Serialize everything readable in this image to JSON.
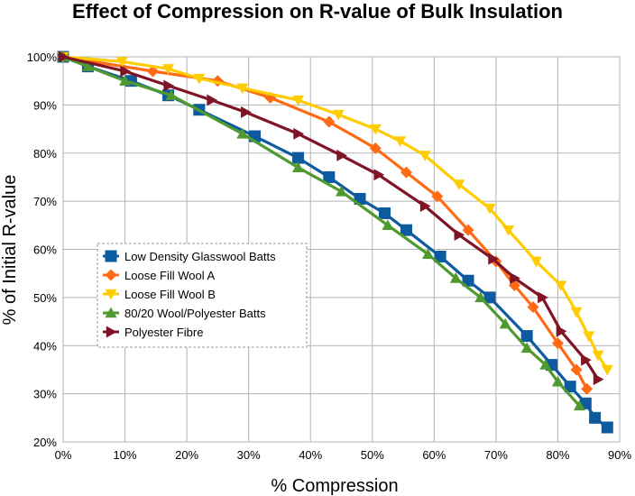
{
  "chart_data": {
    "type": "line",
    "title": "Effect of Compression on R-value of Bulk Insulation",
    "xlabel": "% Compression",
    "ylabel": "% of Initial R-value",
    "xlim": [
      0,
      90
    ],
    "ylim": [
      20,
      100
    ],
    "x_ticks": [
      "0%",
      "10%",
      "20%",
      "30%",
      "40%",
      "50%",
      "60%",
      "70%",
      "80%",
      "90%"
    ],
    "y_ticks": [
      "20%",
      "30%",
      "40%",
      "50%",
      "60%",
      "70%",
      "80%",
      "90%",
      "100%"
    ],
    "grid": true,
    "legend_position": "left-middle",
    "series": [
      {
        "name": "Low Density Glasswool Batts",
        "color": "#0E5A9E",
        "marker": "square",
        "points": [
          [
            0,
            100
          ],
          [
            4,
            98
          ],
          [
            11,
            95
          ],
          [
            17,
            92
          ],
          [
            22,
            89
          ],
          [
            31,
            83.5
          ],
          [
            38,
            79
          ],
          [
            43,
            75
          ],
          [
            48,
            70.5
          ],
          [
            52,
            67.5
          ],
          [
            55.5,
            64
          ],
          [
            61,
            58.5
          ],
          [
            65.5,
            53.5
          ],
          [
            69,
            50
          ],
          [
            75,
            42
          ],
          [
            79,
            36
          ],
          [
            82,
            31.5
          ],
          [
            84.5,
            28
          ],
          [
            86,
            25
          ],
          [
            88,
            23
          ]
        ]
      },
      {
        "name": "Loose Fill Wool A",
        "color": "#FF6A13",
        "marker": "diamond",
        "points": [
          [
            0,
            100
          ],
          [
            14.5,
            97
          ],
          [
            25,
            95
          ],
          [
            33.5,
            91.5
          ],
          [
            43,
            86.5
          ],
          [
            50.5,
            81
          ],
          [
            55.5,
            76
          ],
          [
            60.5,
            71
          ],
          [
            65.5,
            64
          ],
          [
            70,
            57.5
          ],
          [
            73,
            52.5
          ],
          [
            76,
            48
          ],
          [
            80,
            40.5
          ],
          [
            83,
            35
          ],
          [
            84.7,
            31
          ]
        ]
      },
      {
        "name": "Loose Fill Wool B",
        "color": "#FFCC00",
        "marker": "triangle-down",
        "points": [
          [
            0,
            100
          ],
          [
            9.5,
            99
          ],
          [
            17,
            97.5
          ],
          [
            22,
            95.5
          ],
          [
            29,
            93.5
          ],
          [
            38,
            91
          ],
          [
            44.5,
            88
          ],
          [
            50.5,
            85
          ],
          [
            54.5,
            82.5
          ],
          [
            58.5,
            79.5
          ],
          [
            64,
            73.5
          ],
          [
            69,
            68.5
          ],
          [
            72,
            64
          ],
          [
            76.5,
            57.5
          ],
          [
            80.5,
            52.5
          ],
          [
            83,
            47
          ],
          [
            85,
            42
          ],
          [
            86.5,
            38
          ],
          [
            88,
            35
          ]
        ]
      },
      {
        "name": "80/20 Wool/Polyester Batts",
        "color": "#4E9A2E",
        "marker": "triangle-up",
        "points": [
          [
            0,
            100
          ],
          [
            4,
            98
          ],
          [
            10,
            95
          ],
          [
            17.5,
            92
          ],
          [
            29,
            84
          ],
          [
            38,
            77
          ],
          [
            45,
            72
          ],
          [
            52.5,
            65
          ],
          [
            59,
            59
          ],
          [
            63.5,
            54
          ],
          [
            67.5,
            50
          ],
          [
            71.5,
            44.5
          ],
          [
            75,
            39.5
          ],
          [
            78,
            36
          ],
          [
            80,
            32.5
          ],
          [
            83.5,
            27.5
          ]
        ]
      },
      {
        "name": "Polyester Fibre",
        "color": "#7F1427",
        "marker": "triangle-right",
        "points": [
          [
            0,
            100
          ],
          [
            10,
            97
          ],
          [
            17,
            94
          ],
          [
            24,
            91
          ],
          [
            29.5,
            88.5
          ],
          [
            38,
            84
          ],
          [
            45,
            79.5
          ],
          [
            51,
            75.5
          ],
          [
            58.5,
            69
          ],
          [
            64,
            63
          ],
          [
            69.5,
            58
          ],
          [
            73,
            54
          ],
          [
            77.5,
            50
          ],
          [
            80.5,
            43
          ],
          [
            84.5,
            37
          ],
          [
            86.5,
            33
          ]
        ]
      }
    ]
  }
}
